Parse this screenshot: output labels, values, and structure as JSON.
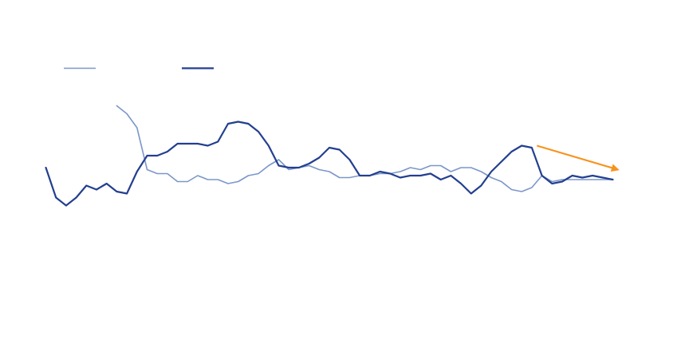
{
  "chart_data": {
    "type": "line",
    "title": "",
    "xlabel": "",
    "ylabel": "",
    "grid": false,
    "axes_visible": false,
    "legend": {
      "placement": "top-left",
      "entries": [
        "",
        ""
      ]
    },
    "xlim": [
      0,
      56
    ],
    "ylim": [
      0,
      100
    ],
    "series": [
      {
        "color": "#7b97c9",
        "stroke": "thin",
        "x": [
          7,
          8,
          9,
          10,
          11,
          12,
          13,
          14,
          15,
          16,
          17,
          18,
          19,
          20,
          21,
          22,
          23,
          24,
          25,
          26,
          27,
          28,
          29,
          30,
          31,
          32,
          33,
          34,
          35,
          36,
          37,
          38,
          39,
          40,
          41,
          42,
          43,
          44,
          45,
          46,
          47,
          48,
          49,
          50,
          51,
          52,
          53,
          54,
          55,
          56
        ],
        "values": [
          79,
          75,
          68,
          47,
          45,
          45,
          41,
          41,
          44,
          42,
          42,
          40,
          41,
          44,
          45,
          49,
          52,
          47,
          48,
          49,
          47,
          46,
          43,
          43,
          44,
          44,
          45,
          45,
          46,
          48,
          47,
          49,
          49,
          46,
          48,
          48,
          46,
          43,
          41,
          37,
          36,
          38,
          44,
          41,
          42,
          42,
          42,
          42,
          42,
          42
        ]
      },
      {
        "color": "#233f8f",
        "stroke": "thick",
        "x": [
          0,
          1,
          2,
          3,
          4,
          5,
          6,
          7,
          8,
          9,
          10,
          11,
          12,
          13,
          14,
          15,
          16,
          17,
          18,
          19,
          20,
          21,
          22,
          23,
          24,
          25,
          26,
          27,
          28,
          29,
          30,
          31,
          32,
          33,
          34,
          35,
          36,
          37,
          38,
          39,
          40,
          41,
          42,
          43,
          44,
          45,
          46,
          47,
          48,
          49,
          50,
          51,
          52,
          53,
          54,
          55,
          56
        ],
        "values": [
          48,
          33,
          29,
          33,
          39,
          37,
          40,
          36,
          35,
          46,
          54,
          54,
          56,
          60,
          60,
          60,
          59,
          61,
          70,
          71,
          70,
          66,
          59,
          49,
          48,
          48,
          50,
          53,
          58,
          57,
          52,
          44,
          44,
          46,
          45,
          43,
          44,
          44,
          45,
          42,
          44,
          40,
          35,
          39,
          46,
          51,
          56,
          59,
          58,
          44,
          40,
          41,
          44,
          43,
          44,
          43,
          42
        ]
      }
    ],
    "annotations": [
      {
        "type": "arrow",
        "color": "#f7931e",
        "from": {
          "x": 48.5,
          "y": 59
        },
        "to": {
          "x": 56.5,
          "y": 47
        }
      }
    ]
  }
}
